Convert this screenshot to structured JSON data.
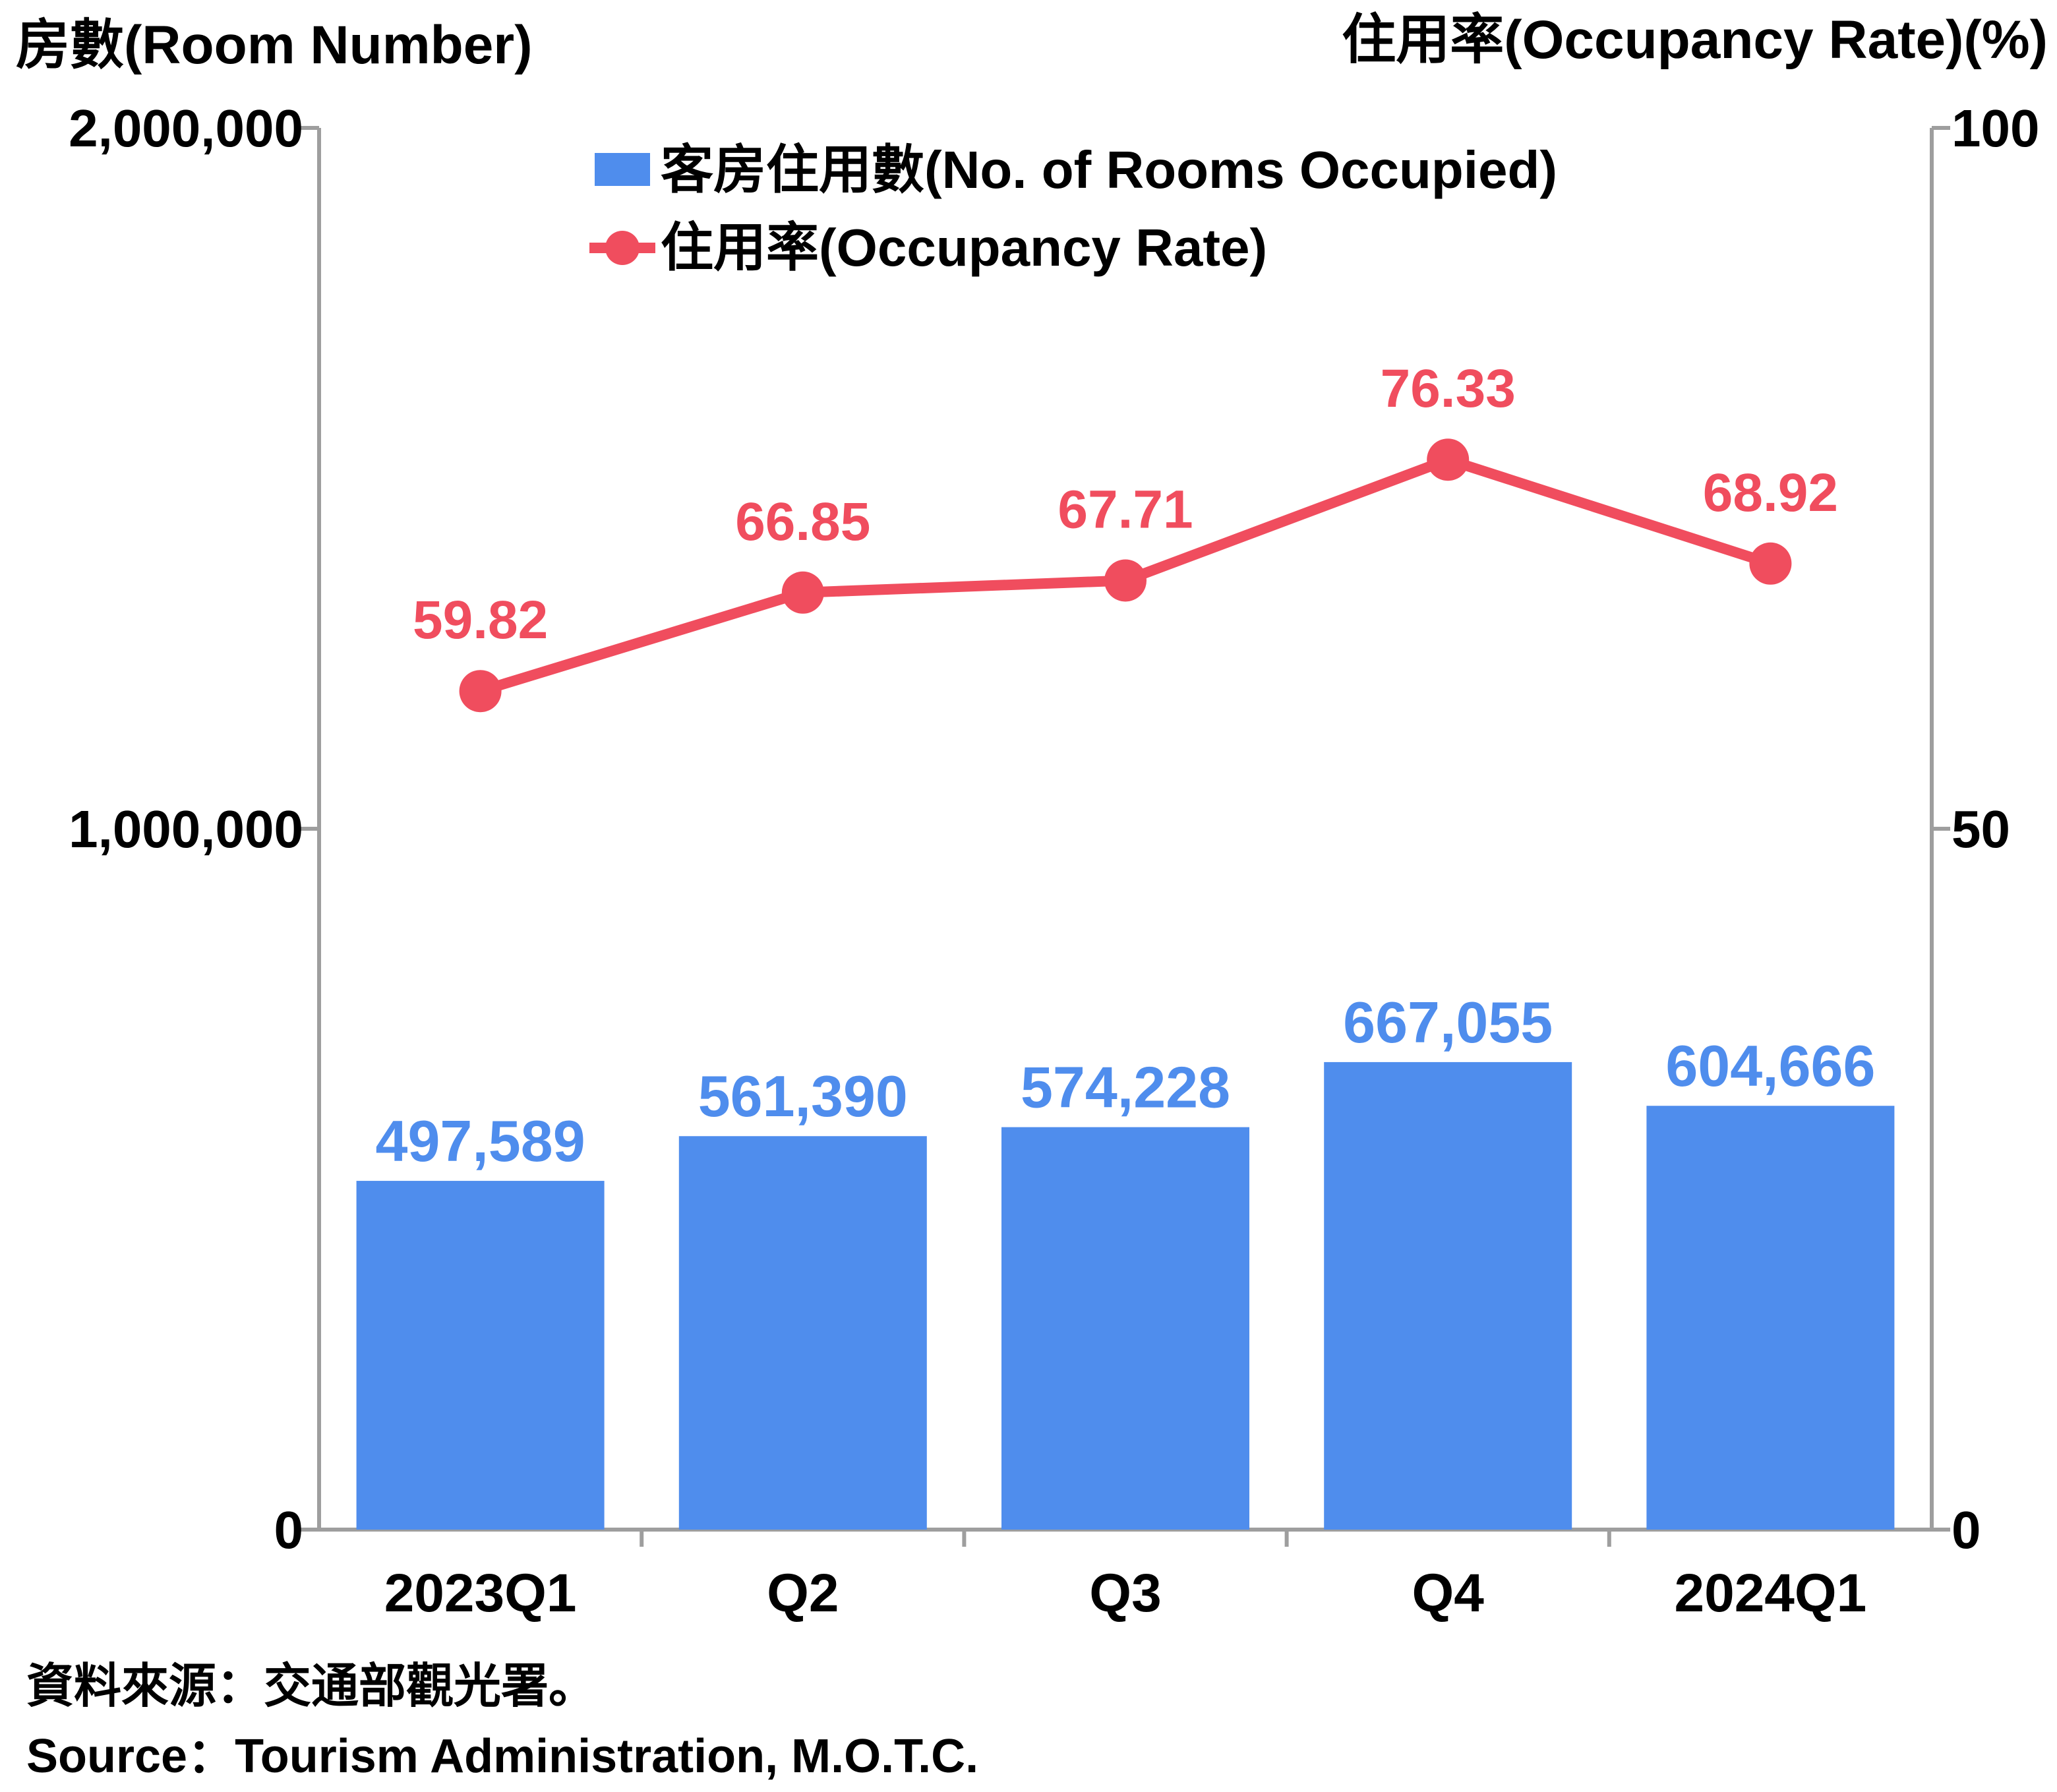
{
  "chart_data": {
    "type": "bar",
    "categories": [
      "2023Q1",
      "Q2",
      "Q3",
      "Q4",
      "2024Q1"
    ],
    "series": [
      {
        "name": "客房住用數(No. of Rooms Occupied)",
        "type": "bar",
        "axis": "left",
        "values": [
          497589,
          561390,
          574228,
          667055,
          604666
        ],
        "labels": [
          "497,589",
          "561,390",
          "574,228",
          "667,055",
          "604,666"
        ]
      },
      {
        "name": "住用率(Occupancy Rate)",
        "type": "line",
        "axis": "right",
        "values": [
          59.82,
          66.85,
          67.71,
          76.33,
          68.92
        ],
        "labels": [
          "59.82",
          "66.85",
          "67.71",
          "76.33",
          "68.92"
        ]
      }
    ],
    "y_left": {
      "label": "房數(Room Number)",
      "range": [
        0,
        2000000
      ],
      "ticks": [
        0,
        1000000,
        2000000
      ],
      "tick_labels": [
        "0",
        "1,000,000",
        "2,000,000"
      ]
    },
    "y_right": {
      "label": "住用率(Occupancy Rate)(%)",
      "range": [
        0,
        100
      ],
      "ticks": [
        0,
        50,
        100
      ],
      "tick_labels": [
        "0",
        "50",
        "100"
      ]
    },
    "grid": false,
    "legend_position": "top-center"
  },
  "source": {
    "zh": "資料來源：交通部觀光署。",
    "en": "Source：Tourism Administration, M.O.T.C."
  },
  "colors": {
    "bar": "#4f8ded",
    "line": "#f04d5e",
    "axis": "#9e9e9e"
  }
}
